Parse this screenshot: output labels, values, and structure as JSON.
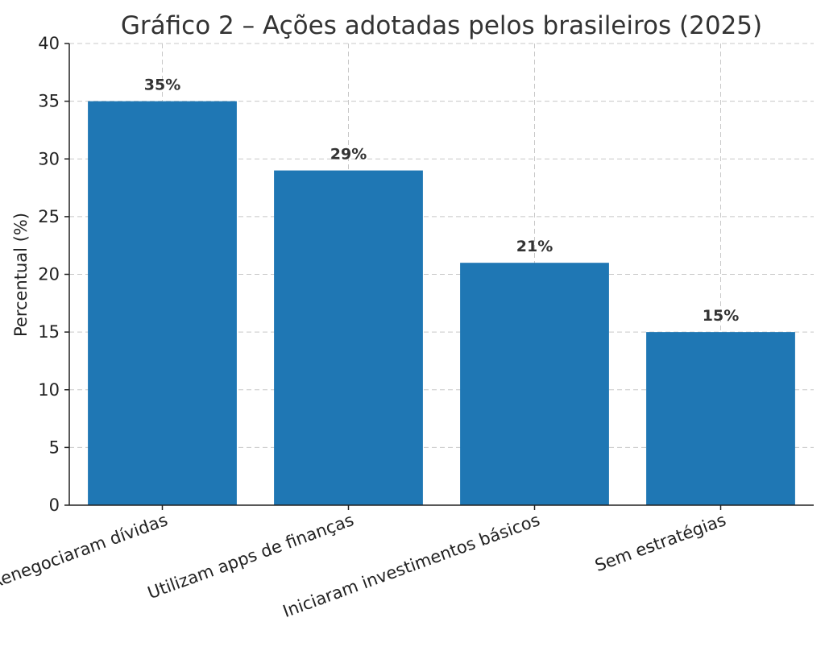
{
  "chart_data": {
    "type": "bar",
    "title": "Gráfico 2 – Ações adotadas pelos brasileiros (2025)",
    "xlabel": "",
    "ylabel": "Percentual (%)",
    "ylim": [
      0,
      40
    ],
    "yticks": [
      "0",
      "5",
      "10",
      "15",
      "20",
      "25",
      "30",
      "35",
      "40"
    ],
    "ytick_values": [
      0,
      5,
      10,
      15,
      20,
      25,
      30,
      35,
      40
    ],
    "categories": [
      "Renegociaram dívidas",
      "Utilizam apps de finanças",
      "Iniciaram investimentos básicos",
      "Sem estratégias"
    ],
    "values": [
      35,
      29,
      21,
      15
    ],
    "value_labels": [
      "35%",
      "29%",
      "21%",
      "15%"
    ],
    "bar_color": "#1f77b4",
    "grid": true
  }
}
